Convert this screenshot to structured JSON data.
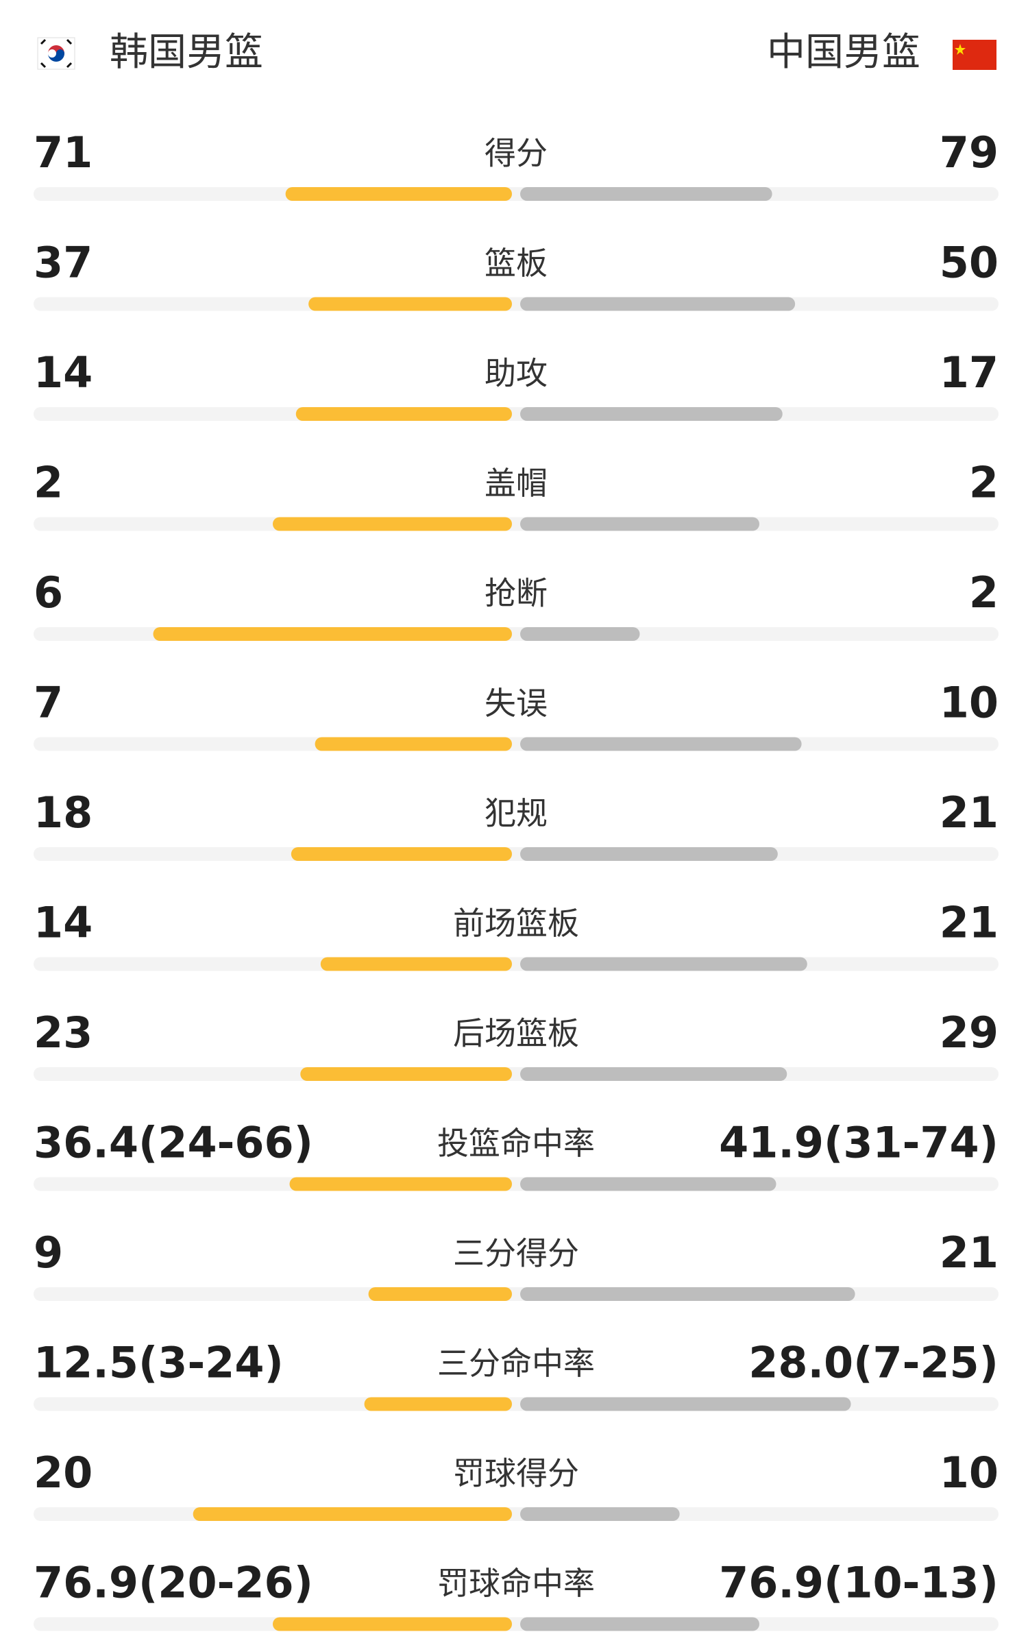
{
  "header": {
    "home": "韩国男篮",
    "away": "中国男篮"
  },
  "rows": [
    {
      "label": "得分",
      "home": 71,
      "away": 79
    },
    {
      "label": "篮板",
      "home": 37,
      "away": 50
    },
    {
      "label": "助攻",
      "home": 14,
      "away": 17
    },
    {
      "label": "盖帽",
      "home": 2,
      "away": 2
    },
    {
      "label": "抢断",
      "home": 6,
      "away": 2
    },
    {
      "label": "失误",
      "home": 7,
      "away": 10
    },
    {
      "label": "犯规",
      "home": 18,
      "away": 21
    },
    {
      "label": "前场篮板",
      "home": 14,
      "away": 21
    },
    {
      "label": "后场篮板",
      "home": 23,
      "away": 29
    },
    {
      "label": "投篮命中率",
      "home": {
        "value": 36.4,
        "label": "36.4(24-66)"
      },
      "away": {
        "value": 41.9,
        "label": "41.9(31-74)"
      }
    },
    {
      "label": "三分得分",
      "home": 9,
      "away": 21
    },
    {
      "label": "三分命中率",
      "home": {
        "value": 12.5,
        "label": "12.5(3-24)"
      },
      "away": {
        "value": 28.0,
        "label": "28.0(7-25)"
      }
    },
    {
      "label": "罚球得分",
      "home": 20,
      "away": 10
    },
    {
      "label": "罚球命中率",
      "home": {
        "value": 76.9,
        "label": "76.9(20-26)"
      },
      "away": {
        "value": 76.9,
        "label": "76.9(10-13)"
      }
    }
  ]
}
